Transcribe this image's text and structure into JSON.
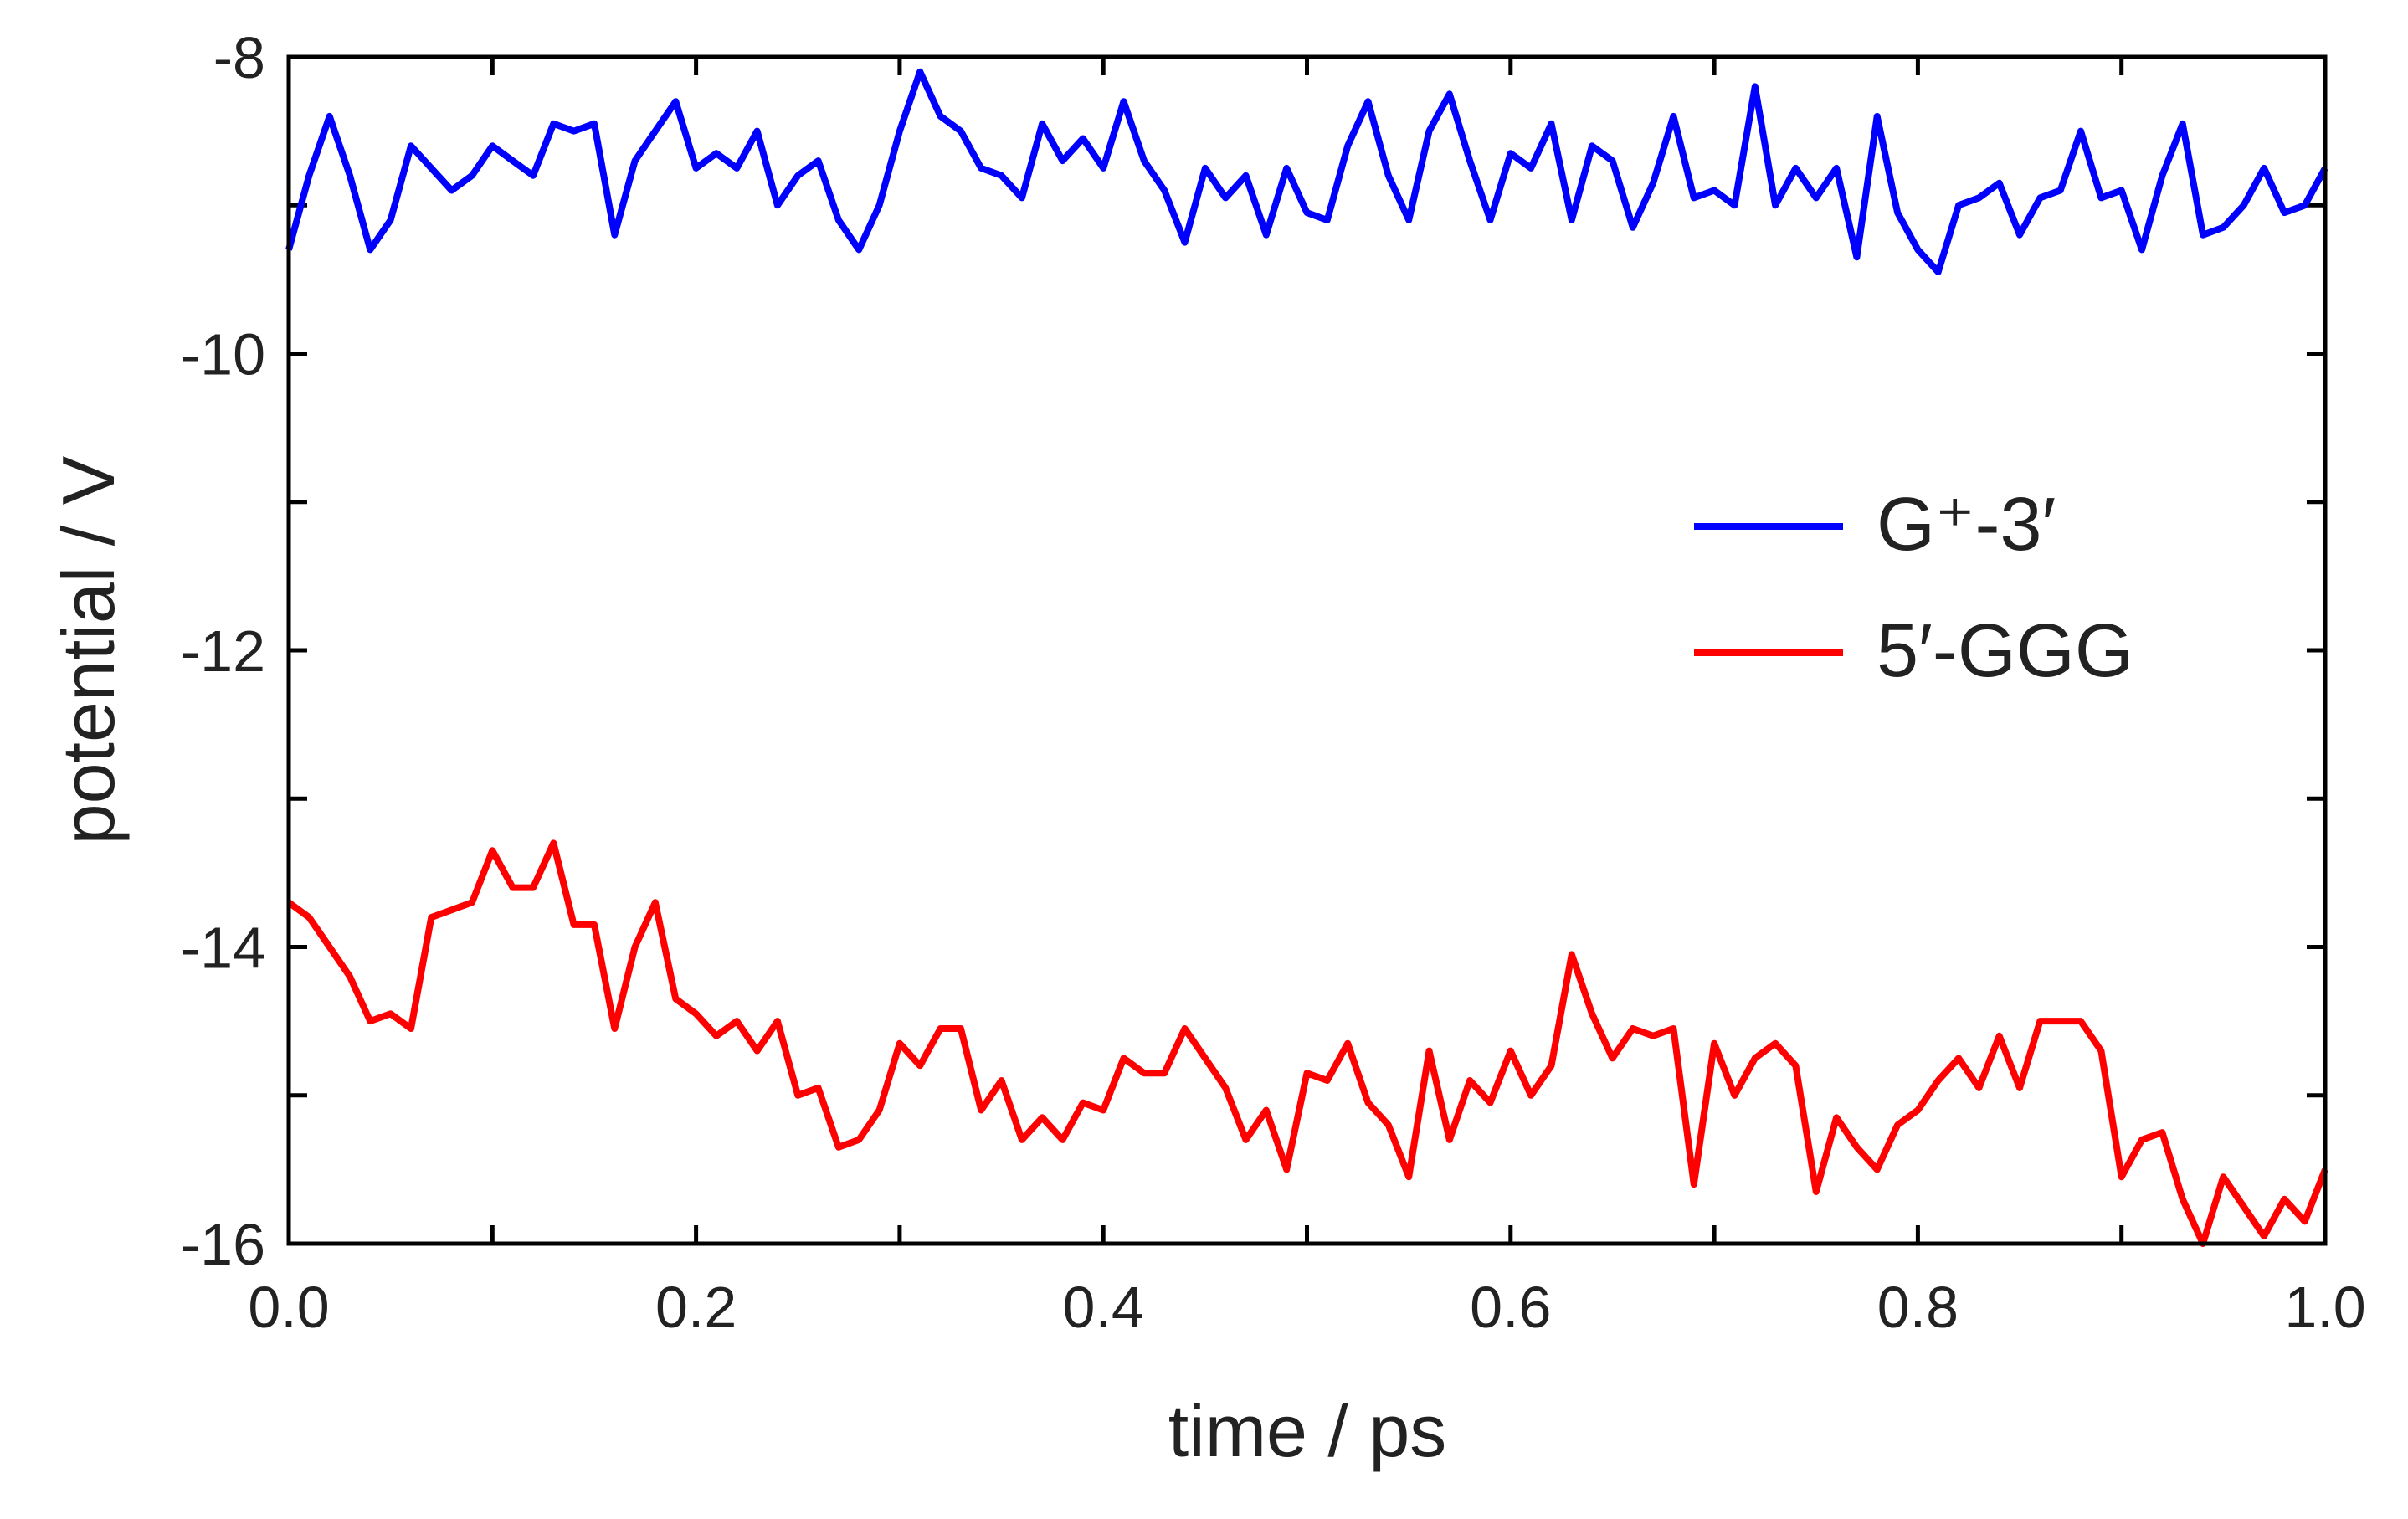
{
  "chart_data": {
    "type": "line",
    "xlabel": "time / ps",
    "ylabel": "potential / V",
    "x": [
      0,
      0.01,
      0.02,
      0.03,
      0.04,
      0.05,
      0.06,
      0.07,
      0.08,
      0.09,
      0.1,
      0.11,
      0.12,
      0.13,
      0.14,
      0.15,
      0.16,
      0.17,
      0.18,
      0.19,
      0.2,
      0.21,
      0.22,
      0.23,
      0.24,
      0.25,
      0.26,
      0.27,
      0.28,
      0.29,
      0.3,
      0.31,
      0.32,
      0.33,
      0.34,
      0.35,
      0.36,
      0.37,
      0.38,
      0.39,
      0.4,
      0.41,
      0.42,
      0.43,
      0.44,
      0.45,
      0.46,
      0.47,
      0.48,
      0.49,
      0.5,
      0.51,
      0.52,
      0.53,
      0.54,
      0.55,
      0.56,
      0.57,
      0.58,
      0.59,
      0.6,
      0.61,
      0.62,
      0.63,
      0.64,
      0.65,
      0.66,
      0.67,
      0.68,
      0.69,
      0.7,
      0.71,
      0.72,
      0.73,
      0.74,
      0.75,
      0.76,
      0.77,
      0.78,
      0.79,
      0.8,
      0.81,
      0.82,
      0.83,
      0.84,
      0.85,
      0.86,
      0.87,
      0.88,
      0.89,
      0.9,
      0.91,
      0.92,
      0.93,
      0.94,
      0.95,
      0.96,
      0.97,
      0.98,
      0.99,
      1
    ],
    "series": [
      {
        "name": "G⁺-3′",
        "color": "#0000ff",
        "values": [
          -9.3,
          -8.8,
          -8.4,
          -8.8,
          -9.3,
          -9.1,
          -8.6,
          -8.75,
          -8.9,
          -8.8,
          -8.6,
          -8.7,
          -8.8,
          -8.45,
          -8.5,
          -8.45,
          -9.2,
          -8.7,
          -8.5,
          -8.3,
          -8.75,
          -8.65,
          -8.75,
          -8.5,
          -9.0,
          -8.8,
          -8.7,
          -9.1,
          -9.3,
          -9.0,
          -8.5,
          -8.1,
          -8.4,
          -8.5,
          -8.75,
          -8.8,
          -8.95,
          -8.45,
          -8.7,
          -8.55,
          -8.75,
          -8.3,
          -8.7,
          -8.9,
          -9.25,
          -8.75,
          -8.95,
          -8.8,
          -9.2,
          -8.75,
          -9.05,
          -9.1,
          -8.6,
          -8.3,
          -8.8,
          -9.1,
          -8.5,
          -8.25,
          -8.7,
          -9.1,
          -8.65,
          -8.75,
          -8.45,
          -9.1,
          -8.6,
          -8.7,
          -9.15,
          -8.85,
          -8.4,
          -8.95,
          -8.9,
          -9.0,
          -8.2,
          -9.0,
          -8.75,
          -8.95,
          -8.75,
          -9.35,
          -8.4,
          -9.05,
          -9.3,
          -9.45,
          -9.0,
          -8.95,
          -8.85,
          -9.2,
          -8.95,
          -8.9,
          -8.5,
          -8.95,
          -8.9,
          -9.3,
          -8.8,
          -8.45,
          -9.2,
          -9.15,
          -9.0,
          -8.75,
          -9.05,
          -9.0,
          -8.75
        ]
      },
      {
        "name": "5′-GGG",
        "color": "#ff0000",
        "values": [
          -13.7,
          -13.8,
          -14.0,
          -14.2,
          -14.5,
          -14.45,
          -14.55,
          -13.8,
          -13.75,
          -13.7,
          -13.35,
          -13.6,
          -13.6,
          -13.3,
          -13.85,
          -13.85,
          -14.55,
          -14.0,
          -13.7,
          -14.35,
          -14.45,
          -14.6,
          -14.5,
          -14.7,
          -14.5,
          -15.0,
          -14.95,
          -15.35,
          -15.3,
          -15.1,
          -14.65,
          -14.8,
          -14.55,
          -14.55,
          -15.1,
          -14.9,
          -15.3,
          -15.15,
          -15.3,
          -15.05,
          -15.1,
          -14.75,
          -14.85,
          -14.85,
          -14.55,
          -14.75,
          -14.95,
          -15.3,
          -15.1,
          -15.5,
          -14.85,
          -14.9,
          -14.65,
          -15.05,
          -15.2,
          -15.55,
          -14.7,
          -15.3,
          -14.9,
          -15.05,
          -14.7,
          -15.0,
          -14.8,
          -14.05,
          -14.45,
          -14.75,
          -14.55,
          -14.6,
          -14.55,
          -15.6,
          -14.65,
          -15.0,
          -14.75,
          -14.65,
          -14.8,
          -15.65,
          -15.15,
          -15.35,
          -15.5,
          -15.2,
          -15.1,
          -14.9,
          -14.75,
          -14.95,
          -14.6,
          -14.95,
          -14.5,
          -14.5,
          -14.5,
          -14.7,
          -15.55,
          -15.3,
          -15.25,
          -15.7,
          -16.0,
          -15.55,
          -15.75,
          -15.95,
          -15.7,
          -15.85,
          -15.5
        ]
      }
    ],
    "xlim": [
      0,
      1
    ],
    "xticks": [
      {
        "value": 0,
        "label": "0.0"
      },
      0.2,
      0.4,
      0.6,
      0.8,
      {
        "value": 1,
        "label": "1.0"
      }
    ],
    "xminorticks": [
      0.1,
      0.3,
      0.5,
      0.7,
      0.9
    ],
    "ylim": [
      -16,
      -8
    ],
    "yticks": [
      -8,
      -10,
      -12,
      -14,
      -16
    ],
    "yminorticks": [
      -9,
      -11,
      -13,
      -15
    ],
    "legend": "right"
  }
}
